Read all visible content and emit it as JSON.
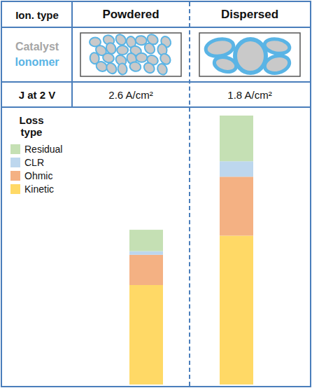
{
  "chart_data": {
    "type": "bar",
    "stacked": true,
    "header_label": "Ion. type",
    "material_labels": [
      "Catalyst",
      "Ionomer"
    ],
    "material_colors": [
      "#a6a6a6",
      "#5ab4e5"
    ],
    "row_label": "J at 2 V",
    "row_values": [
      "2.6 A/cm²",
      "1.8 A/cm²"
    ],
    "legend_title": "Loss type",
    "legend": "left",
    "categories": [
      "Powdered",
      "Dispersed"
    ],
    "series": [
      {
        "name": "Kinetic",
        "color": "#ffd966",
        "values": [
          135,
          202
        ]
      },
      {
        "name": "Ohmic",
        "color": "#f4b183",
        "values": [
          41,
          80
        ]
      },
      {
        "name": "CLR",
        "color": "#bdd7ee",
        "values": [
          5,
          21
        ]
      },
      {
        "name": "Residual",
        "color": "#c5e0b4",
        "values": [
          29,
          62
        ]
      }
    ],
    "ylim": [
      0,
      365
    ],
    "tick_labels": false
  }
}
